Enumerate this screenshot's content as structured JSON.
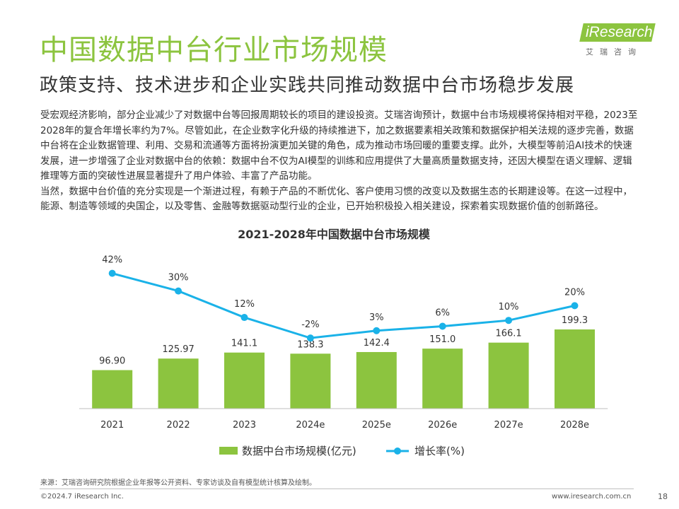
{
  "header": {
    "title": "中国数据中台行业市场规模",
    "subtitle": "政策支持、技术进步和企业实践共同推动数据中台市场稳步发展"
  },
  "logo": {
    "text": "iResearch",
    "sub": "艾瑞咨询"
  },
  "body": {
    "paragraphs": [
      "受宏观经济影响，部分企业减少了对数据中台等回报周期较长的项目的建设投资。艾瑞咨询预计，数据中台市场规模将保持相对平稳，2023至2028年的复合年增长率约为7%。尽管如此，在企业数字化升级的持续推进下，加之数据要素相关政策和数据保护相关法规的逐步完善，数据中台将在企业数据管理、利用、交易和流通等方面将扮演更加关键的角色，成为推动市场回暖的重要支撑。此外，大模型等前沿AI技术的快速发展，进一步增强了企业对数据中台的依赖：数据中台不仅为AI模型的训练和应用提供了大量高质量数据支持，还因大模型在语义理解、逻辑推理等方面的突破性进展显著提升了用户体验、丰富了产品功能。",
      "当然，数据中台价值的充分实现是一个渐进过程，有赖于产品的不断优化、客户使用习惯的改变以及数据生态的长期建设等。在这一过程中，能源、制造等领域的央国企，以及零售、金融等数据驱动型行业的企业，已开始积极投入相关建设，探索着实现数据价值的创新路径。"
    ]
  },
  "chart_data": {
    "type": "bar",
    "title": "2021-2028年中国数据中台市场规模",
    "categories": [
      "2021",
      "2022",
      "2023",
      "2024e",
      "2025e",
      "2026e",
      "2027e",
      "2028e"
    ],
    "series": [
      {
        "name": "数据中台市场规模(亿元)",
        "type": "bar",
        "values": [
          96.9,
          125.97,
          141.1,
          138.3,
          142.4,
          151.0,
          166.1,
          199.3
        ],
        "labels": [
          "96.90",
          "125.97",
          "141.1",
          "138.3",
          "142.4",
          "151.0",
          "166.1",
          "199.3"
        ]
      },
      {
        "name": "增长率(%)",
        "type": "line",
        "values": [
          42,
          30,
          12,
          -2,
          3,
          6,
          10,
          20
        ],
        "labels": [
          "42%",
          "30%",
          "12%",
          "-2%",
          "3%",
          "6%",
          "10%",
          "20%"
        ]
      }
    ],
    "legend_position": "bottom",
    "colors": {
      "bar": "#8cc43f",
      "line": "#1ab2e8"
    }
  },
  "footer": {
    "source": "来源：艾瑞咨询研究院根据企业年报等公开资料、专家访谈及自有模型统计核算及绘制。",
    "copyright": "©2024.7 iResearch Inc.",
    "website": "www.iresearch.com.cn",
    "page": "18"
  }
}
